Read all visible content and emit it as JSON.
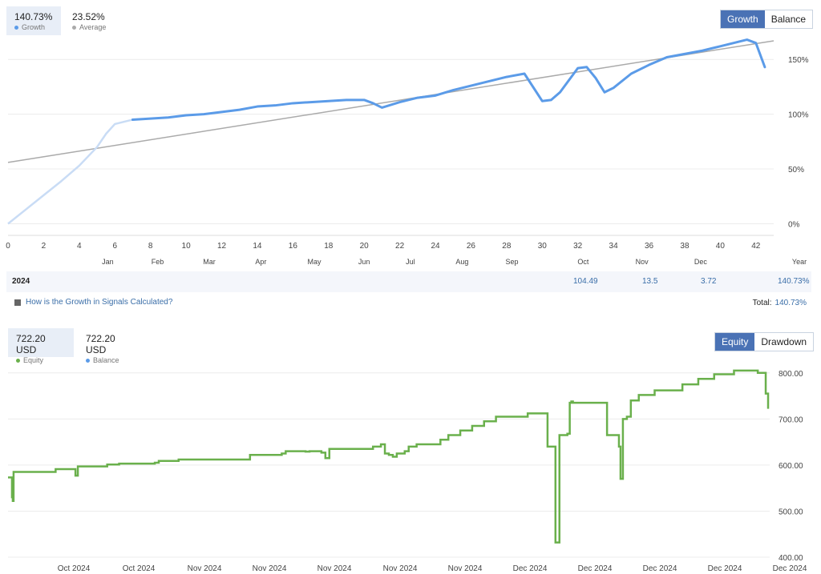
{
  "growth_panel": {
    "stats": [
      {
        "value": "140.73%",
        "label": "Growth",
        "color": "#5b9be8"
      },
      {
        "value": "23.52%",
        "label": "Average",
        "color": "#aaaaaa"
      }
    ],
    "tabs": [
      "Growth",
      "Balance"
    ],
    "active_tab": "Growth"
  },
  "year_row": {
    "year": "2024",
    "oct": "104.49",
    "nov": "13.5",
    "dec": "3.72",
    "total": "140.73%"
  },
  "help_link": "How is the Growth in Signals Calculated?",
  "total_label": "Total:",
  "total_value": "140.73%",
  "equity_panel": {
    "stats": [
      {
        "value": "722.20 USD",
        "label": "Equity",
        "color": "#6ab04c"
      },
      {
        "value": "722.20 USD",
        "label": "Balance",
        "color": "#5b9be8"
      }
    ],
    "tabs": [
      "Equity",
      "Drawdown"
    ],
    "active_tab": "Equity"
  },
  "chart_data": [
    {
      "type": "line",
      "ylim": [
        -15,
        175
      ],
      "xlim": [
        0,
        43
      ],
      "y_ticks": [
        "0%",
        "50%",
        "100%",
        "150%"
      ],
      "y_tick_values": [
        0,
        50,
        100,
        150
      ],
      "x_ticks": [
        "0",
        "2",
        "4",
        "6",
        "8",
        "10",
        "12",
        "14",
        "16",
        "18",
        "20",
        "22",
        "24",
        "26",
        "28",
        "30",
        "32",
        "34",
        "36",
        "38",
        "40",
        "42"
      ],
      "month_labels": [
        {
          "label": "Jan",
          "x": 5.6
        },
        {
          "label": "Feb",
          "x": 8.4
        },
        {
          "label": "Mar",
          "x": 11.3
        },
        {
          "label": "Apr",
          "x": 14.2
        },
        {
          "label": "May",
          "x": 17.2
        },
        {
          "label": "Jun",
          "x": 20
        },
        {
          "label": "Jul",
          "x": 22.6
        },
        {
          "label": "Aug",
          "x": 25.5
        },
        {
          "label": "Sep",
          "x": 28.3
        },
        {
          "label": "Oct",
          "x": 32.3
        },
        {
          "label": "Nov",
          "x": 35.6
        },
        {
          "label": "Dec",
          "x": 38.9
        },
        {
          "label": "Year",
          "x": 42.7
        }
      ],
      "series": [
        {
          "name": "Growth",
          "color": "#5b9be8",
          "history_color": "#c9dcf5",
          "history_end_x": 7,
          "x": [
            0,
            1,
            2,
            3,
            4,
            5,
            5.5,
            6,
            7,
            8,
            9,
            10,
            11,
            12,
            13,
            14,
            15,
            16,
            17,
            18,
            19,
            20,
            20.5,
            21,
            22,
            23,
            24,
            25,
            26,
            27,
            28,
            29,
            30,
            30.5,
            31,
            32,
            32.5,
            33,
            33.5,
            34,
            35,
            36,
            37,
            38,
            39,
            40,
            41,
            41.5,
            42,
            42.5
          ],
          "y": [
            0,
            13,
            26,
            39,
            53,
            70,
            82,
            91,
            95,
            96,
            97,
            99,
            100,
            102,
            104,
            107,
            108,
            110,
            111,
            112,
            113,
            113,
            110,
            106,
            111,
            115,
            117,
            122,
            126,
            130,
            134,
            137,
            112,
            113,
            120,
            142,
            143,
            133,
            120,
            124,
            137,
            145,
            152,
            155,
            158,
            162,
            166,
            168,
            165,
            143
          ]
        },
        {
          "name": "Average",
          "color": "#aaaaaa",
          "x": [
            0,
            43
          ],
          "y": [
            56,
            167
          ]
        }
      ]
    },
    {
      "type": "line",
      "ylim": [
        400,
        810
      ],
      "y_ticks": [
        "800.00",
        "700.00",
        "600.00",
        "500.00",
        "400.00"
      ],
      "y_tick_values": [
        800,
        700,
        600,
        500,
        400
      ],
      "x_ticks": [
        "Oct 2024",
        "Oct 2024",
        "Nov 2024",
        "Nov 2024",
        "Nov 2024",
        "Nov 2024",
        "Nov 2024",
        "Dec 2024",
        "Dec 2024",
        "Dec 2024",
        "Dec 2024",
        "Dec 2024"
      ],
      "series": [
        {
          "name": "Equity",
          "color": "#6ab04c",
          "x": [
            0,
            5,
            5,
            6,
            6,
            7,
            7,
            8,
            60,
            60,
            85,
            85,
            88,
            88,
            125,
            125,
            140,
            140,
            185,
            185,
            190,
            190,
            215,
            215,
            305,
            305,
            345,
            345,
            350,
            350,
            375,
            375,
            380,
            380,
            395,
            395,
            400,
            400,
            405,
            405,
            460,
            460,
            470,
            470,
            475,
            475,
            480,
            480,
            485,
            485,
            490,
            490,
            500,
            500,
            505,
            505,
            515,
            515,
            545,
            545,
            555,
            555,
            570,
            570,
            585,
            585,
            600,
            600,
            615,
            615,
            655,
            655,
            680,
            680,
            690,
            690,
            695,
            695,
            705,
            705,
            708,
            708,
            712,
            712,
            710,
            710,
            755,
            755,
            770,
            770,
            772,
            772,
            775,
            775,
            780,
            780,
            785,
            785,
            795,
            795,
            815,
            815,
            850,
            850,
            870,
            870,
            890,
            890,
            915,
            915,
            945,
            945,
            955,
            955,
            958,
            958
          ],
          "y": [
            573,
            573,
            530,
            530,
            522,
            522,
            585,
            585,
            585,
            591,
            591,
            577,
            577,
            597,
            597,
            601,
            601,
            603,
            603,
            605,
            605,
            609,
            609,
            612,
            612,
            622,
            622,
            625,
            625,
            630,
            630,
            629,
            629,
            630,
            630,
            627,
            627,
            615,
            615,
            635,
            635,
            640,
            640,
            645,
            645,
            625,
            625,
            622,
            622,
            618,
            618,
            625,
            625,
            630,
            630,
            640,
            640,
            645,
            645,
            655,
            655,
            665,
            665,
            675,
            675,
            685,
            685,
            695,
            695,
            705,
            705,
            712,
            712,
            640,
            640,
            432,
            432,
            665,
            665,
            668,
            668,
            735,
            735,
            738,
            738,
            735,
            735,
            665,
            665,
            640,
            640,
            570,
            570,
            700,
            700,
            705,
            705,
            740,
            740,
            752,
            752,
            762,
            762,
            775,
            775,
            787,
            787,
            797,
            797,
            805,
            805,
            800,
            800,
            755,
            755,
            722
          ]
        }
      ]
    }
  ]
}
